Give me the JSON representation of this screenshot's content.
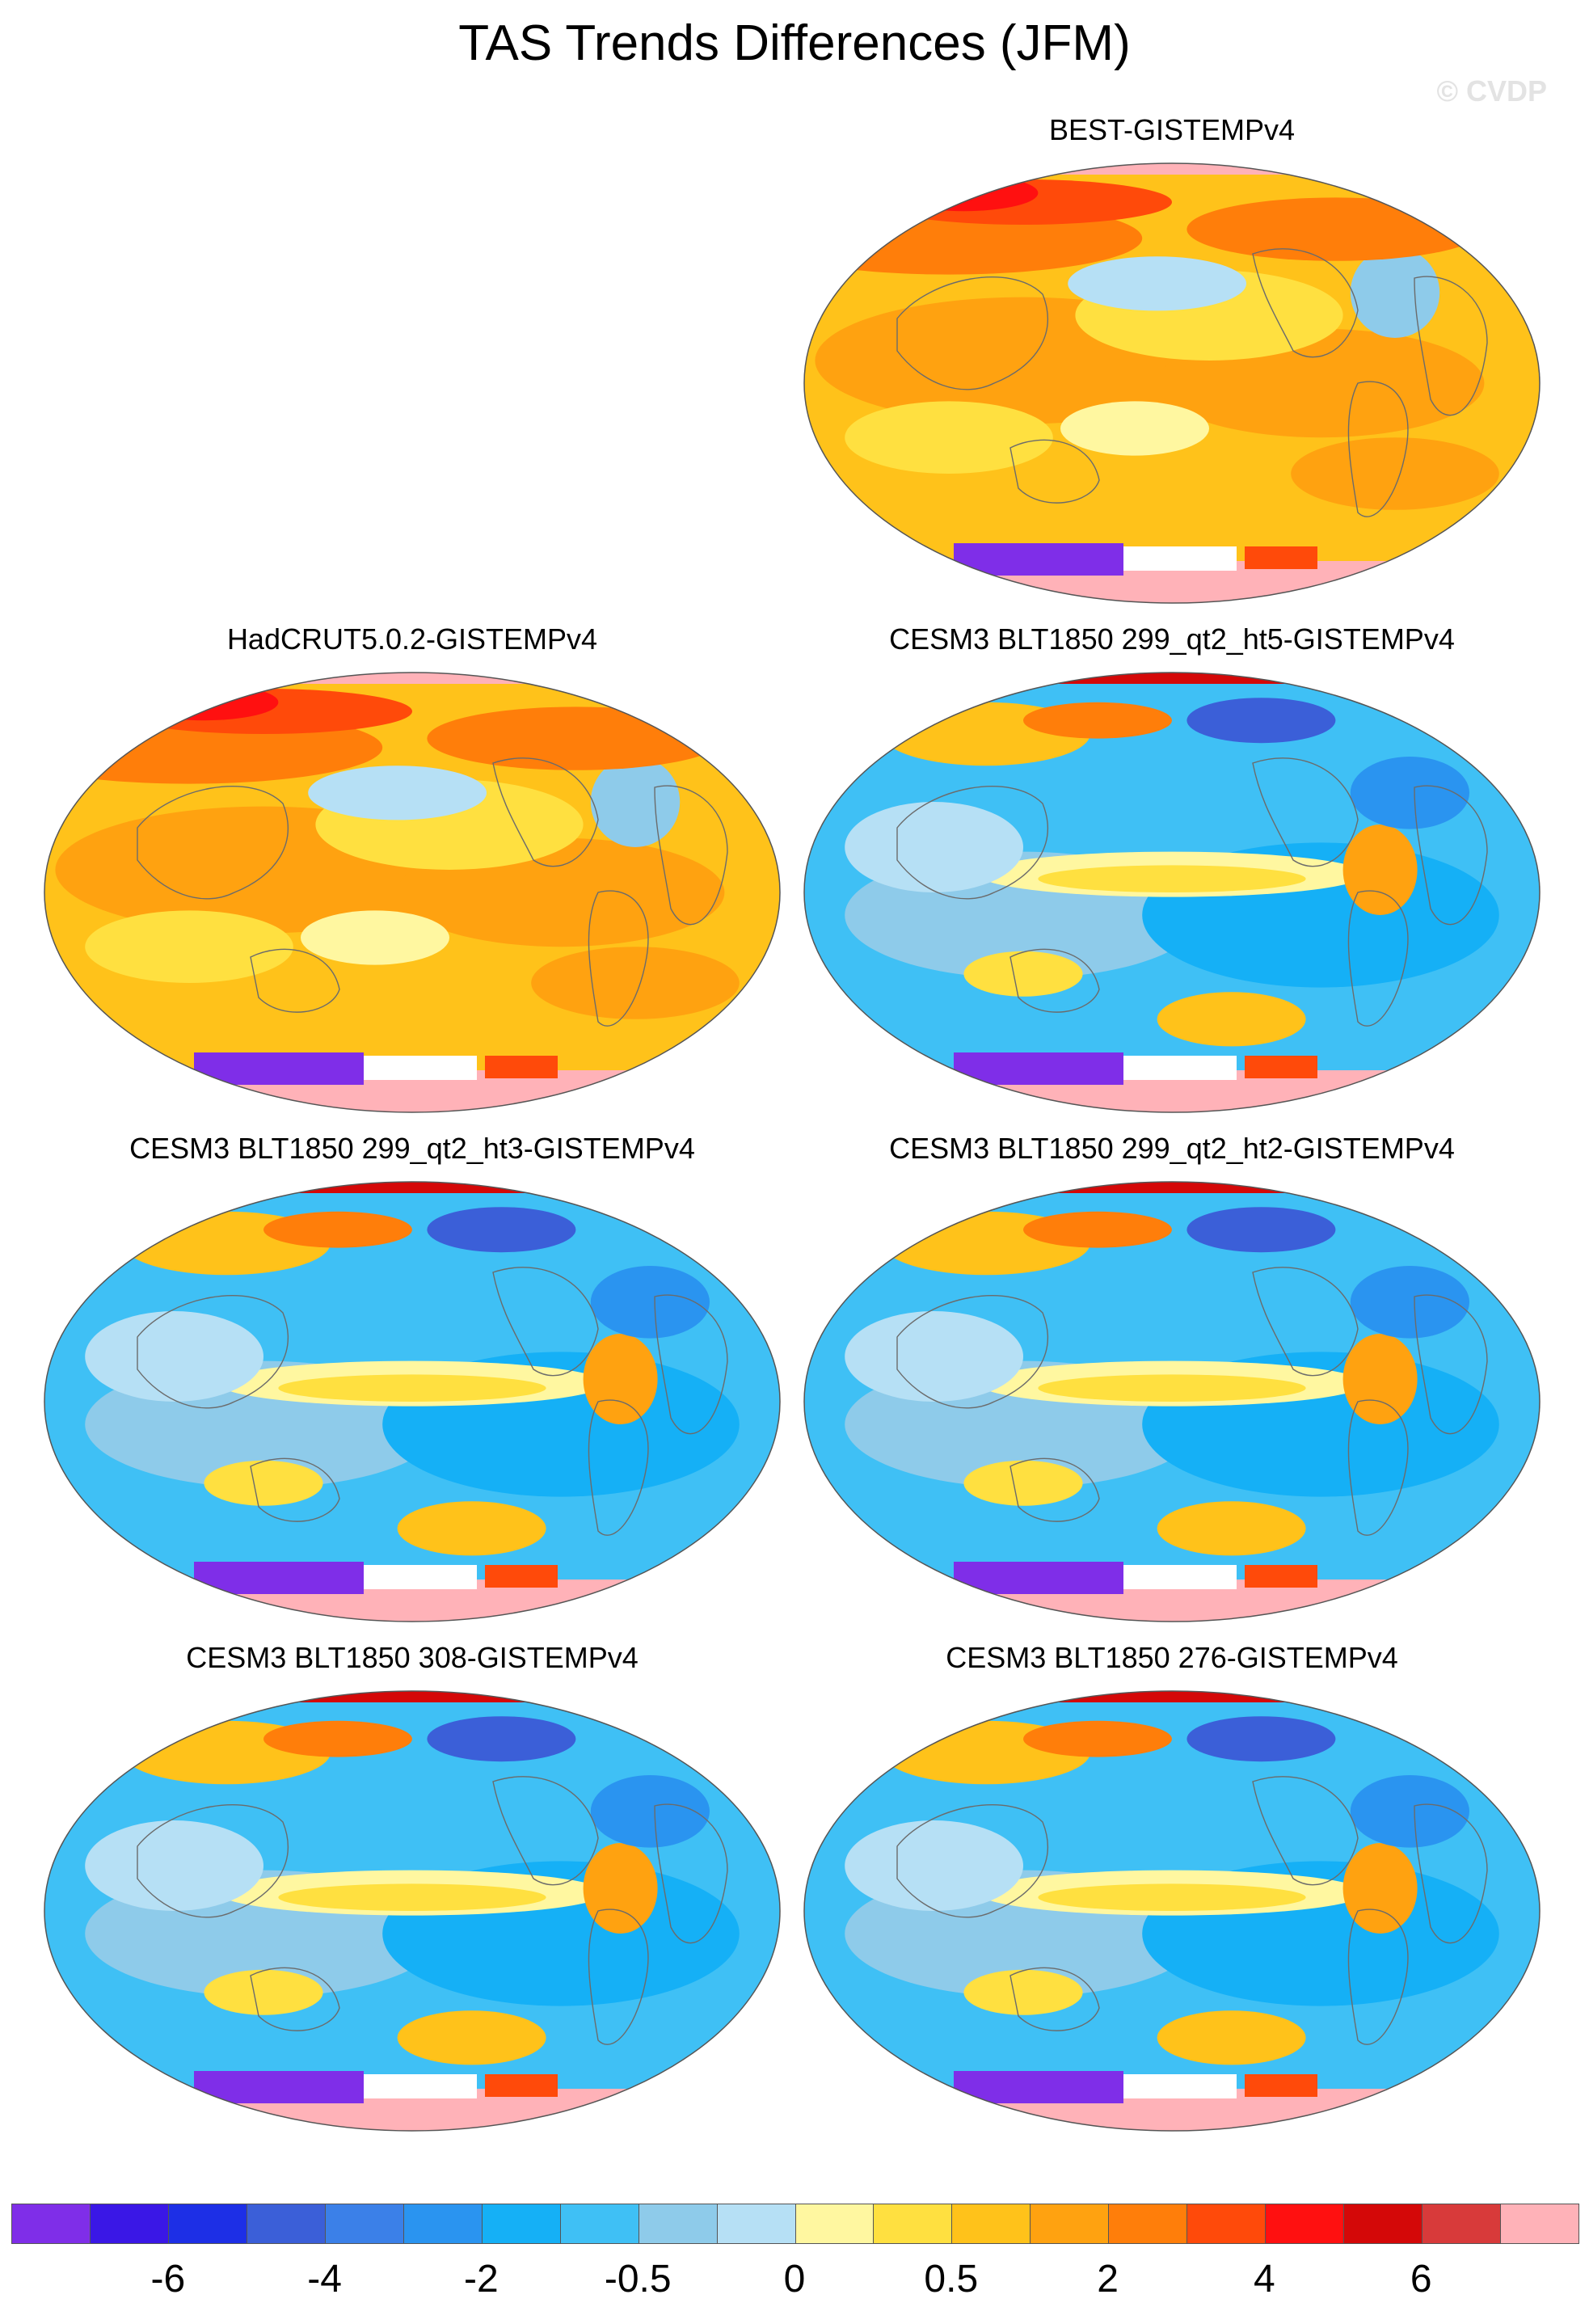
{
  "title": "TAS Trends Differences (JFM)",
  "watermark": "© CVDP",
  "panels": [
    {
      "title": "BEST-GISTEMPv4",
      "regime": "warm"
    },
    {
      "title": "HadCRUT5.0.2-GISTEMPv4",
      "regime": "warm"
    },
    {
      "title": "CESM3 BLT1850 299_qt2_ht5-GISTEMPv4",
      "regime": "cool"
    },
    {
      "title": "CESM3 BLT1850 299_qt2_ht3-GISTEMPv4",
      "regime": "cool"
    },
    {
      "title": "CESM3 BLT1850 299_qt2_ht2-GISTEMPv4",
      "regime": "cool"
    },
    {
      "title": "CESM3 BLT1850 308-GISTEMPv4",
      "regime": "cool"
    },
    {
      "title": "CESM3 BLT1850 276-GISTEMPv4",
      "regime": "cool"
    }
  ],
  "colorbar": {
    "colors": [
      "#7f2ee8",
      "#3a17e6",
      "#1d2fe6",
      "#3b5fd8",
      "#3b80e8",
      "#2a94f0",
      "#15b0f6",
      "#3fc0f5",
      "#8ecbea",
      "#b6e0f5",
      "#fff7a0",
      "#ffe040",
      "#ffc21a",
      "#ffa210",
      "#ff7e0a",
      "#ff4a0a",
      "#ff1010",
      "#d40808",
      "#d83a3a",
      "#ffb2b8"
    ],
    "labels": [
      "-6",
      "-4",
      "-2",
      "-0.5",
      "0",
      "0.5",
      "2",
      "4",
      "6"
    ],
    "label_after_box": [
      1,
      3,
      5,
      7,
      9,
      11,
      13,
      15,
      17
    ]
  }
}
